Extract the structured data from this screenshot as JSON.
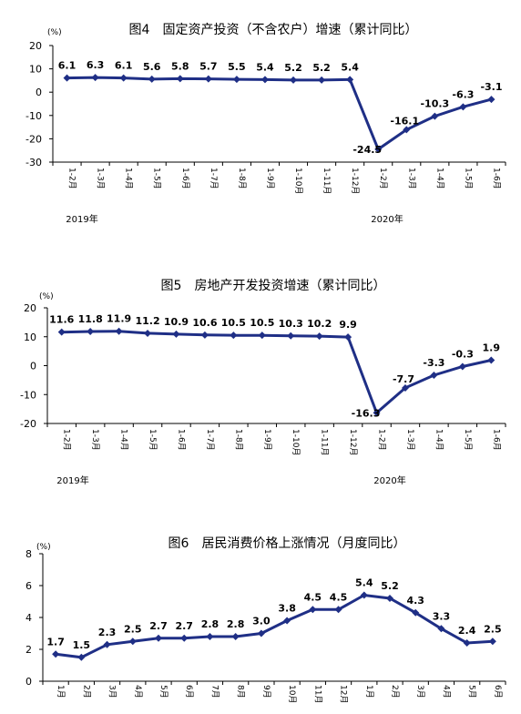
{
  "chart_data": [
    {
      "type": "line",
      "title": "图4　固定资产投资（不含农户）增速（累计同比）",
      "unit": "(%)",
      "categories": [
        "1-2月",
        "1-3月",
        "1-4月",
        "1-5月",
        "1-6月",
        "1-7月",
        "1-8月",
        "1-9月",
        "1-10月",
        "1-11月",
        "1-12月",
        "1-2月",
        "1-3月",
        "1-4月",
        "1-5月",
        "1-6月"
      ],
      "values": [
        6.1,
        6.3,
        6.1,
        5.6,
        5.8,
        5.7,
        5.5,
        5.4,
        5.2,
        5.2,
        5.4,
        -24.5,
        -16.1,
        -10.3,
        -6.3,
        -3.1
      ],
      "value_labels": [
        "6.1",
        "6.3",
        "6.1",
        "5.6",
        "5.8",
        "5.7",
        "5.5",
        "5.4",
        "5.2",
        "5.2",
        "5.4",
        "-24.5",
        "-16.1",
        "-10.3",
        "-6.3",
        "-3.1"
      ],
      "ylim": [
        -30,
        20
      ],
      "yticks": [
        -30,
        -20,
        -10,
        0,
        10,
        20
      ],
      "year_labels": [
        "2019年",
        "2020年"
      ],
      "series_color": "#1f2f86",
      "grid": false
    },
    {
      "type": "line",
      "title": "图5　房地产开发投资增速（累计同比）",
      "unit": "(%)",
      "categories": [
        "1-2月",
        "1-3月",
        "1-4月",
        "1-5月",
        "1-6月",
        "1-7月",
        "1-8月",
        "1-9月",
        "1-10月",
        "1-11月",
        "1-12月",
        "1-2月",
        "1-3月",
        "1-4月",
        "1-5月",
        "1-6月"
      ],
      "values": [
        11.6,
        11.8,
        11.9,
        11.2,
        10.9,
        10.6,
        10.5,
        10.5,
        10.3,
        10.2,
        9.9,
        -16.3,
        -7.7,
        -3.3,
        -0.3,
        1.9
      ],
      "value_labels": [
        "11.6",
        "11.8",
        "11.9",
        "11.2",
        "10.9",
        "10.6",
        "10.5",
        "10.5",
        "10.3",
        "10.2",
        "9.9",
        "-16.3",
        "-7.7",
        "-3.3",
        "-0.3",
        "1.9"
      ],
      "ylim": [
        -20,
        20
      ],
      "yticks": [
        -20,
        -10,
        0,
        10,
        20
      ],
      "year_labels": [
        "2019年",
        "2020年"
      ],
      "series_color": "#1f2f86",
      "grid": false
    },
    {
      "type": "line",
      "title": "图6　居民消费价格上涨情况（月度同比）",
      "unit": "(%)",
      "categories": [
        "1月",
        "2月",
        "3月",
        "4月",
        "5月",
        "6月",
        "7月",
        "8月",
        "9月",
        "10月",
        "11月",
        "12月",
        "1月",
        "2月",
        "3月",
        "4月",
        "5月",
        "6月"
      ],
      "values": [
        1.7,
        1.5,
        2.3,
        2.5,
        2.7,
        2.7,
        2.8,
        2.8,
        3.0,
        3.8,
        4.5,
        4.5,
        5.4,
        5.2,
        4.3,
        3.3,
        2.4,
        2.5
      ],
      "value_labels": [
        "1.7",
        "1.5",
        "2.3",
        "2.5",
        "2.7",
        "2.7",
        "2.8",
        "2.8",
        "3.0",
        "3.8",
        "4.5",
        "4.5",
        "5.4",
        "5.2",
        "4.3",
        "3.3",
        "2.4",
        "2.5"
      ],
      "ylim": [
        0,
        8
      ],
      "yticks": [
        0,
        2,
        4,
        6,
        8
      ],
      "year_labels": [],
      "series_color": "#1f2f86",
      "grid": false
    }
  ]
}
